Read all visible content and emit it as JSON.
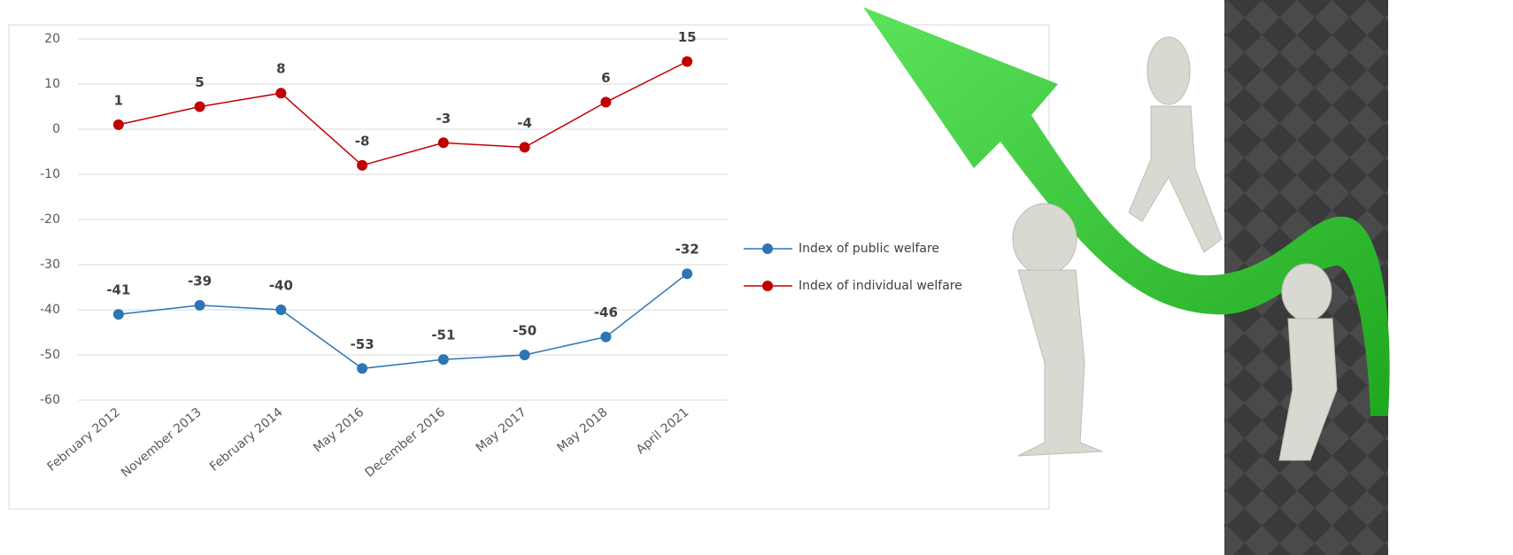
{
  "chart_data": {
    "type": "line",
    "categories": [
      "February 2012",
      "November 2013",
      "February 2014",
      "May 2016",
      "December 2016",
      "May 2017",
      "May 2018",
      "April 2021"
    ],
    "series": [
      {
        "name": "Index of public welfare",
        "color": "#2e75b6",
        "values": [
          -41,
          -39,
          -40,
          -53,
          -51,
          -50,
          -46,
          -32
        ]
      },
      {
        "name": "Index of individual welfare",
        "color": "#c00000",
        "values": [
          1,
          5,
          8,
          -8,
          -3,
          -4,
          6,
          15
        ]
      }
    ],
    "ylim": [
      -60,
      20
    ],
    "yticks": [
      -60,
      -50,
      -40,
      -30,
      -20,
      -10,
      0,
      10,
      20
    ],
    "grid": true,
    "legend": "right",
    "data_labels": true
  }
}
